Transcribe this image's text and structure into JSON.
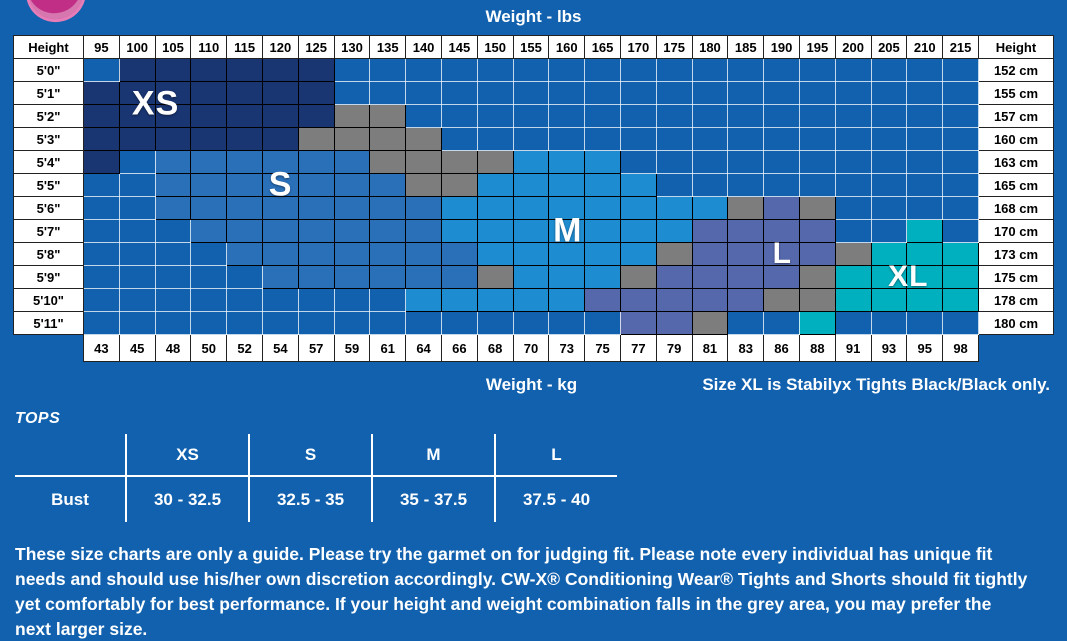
{
  "page": {
    "bg_color": "#1161ae",
    "weight_lbs_label": "Weight - lbs",
    "weight_kg_label": "Weight - kg",
    "xl_note": "Size XL is Stabilyx Tights Black/Black only."
  },
  "chart_data": {
    "type": "heatmap",
    "title": "Weight - lbs",
    "xlabel_top": "Weight - lbs",
    "xlabel_bottom": "Weight - kg",
    "height_header": "Height",
    "x_categories_lbs": [
      "95",
      "100",
      "105",
      "110",
      "115",
      "120",
      "125",
      "130",
      "135",
      "140",
      "145",
      "150",
      "155",
      "160",
      "165",
      "170",
      "175",
      "180",
      "185",
      "190",
      "195",
      "200",
      "205",
      "210",
      "215"
    ],
    "x_categories_kg": [
      "43",
      "45",
      "48",
      "50",
      "52",
      "54",
      "57",
      "59",
      "61",
      "64",
      "66",
      "68",
      "70",
      "73",
      "75",
      "77",
      "79",
      "81",
      "83",
      "86",
      "88",
      "91",
      "93",
      "95",
      "98"
    ],
    "y_categories_ft": [
      "5'0\"",
      "5'1\"",
      "5'2\"",
      "5'3\"",
      "5'4\"",
      "5'5\"",
      "5'6\"",
      "5'7\"",
      "5'8\"",
      "5'9\"",
      "5'10\"",
      "5'11\""
    ],
    "y_categories_cm": [
      "152 cm",
      "155 cm",
      "157 cm",
      "160 cm",
      "163 cm",
      "165 cm",
      "168 cm",
      "170 cm",
      "173 cm",
      "175 cm",
      "178 cm",
      "180 cm"
    ],
    "sizes": [
      {
        "label": "XS"
      },
      {
        "label": "S"
      },
      {
        "label": "M"
      },
      {
        "label": "L"
      },
      {
        "label": "XL"
      }
    ],
    "colors": {
      "xs": "#193572",
      "s": "#2a70b9",
      "m": "#1e8cd0",
      "l": "#5568ac",
      "xl": "#00b0bf",
      "g": "#7d7d7d",
      "empty": "#1161ae"
    },
    "legend_note": "grey cells = overlap zone, prefer next larger size",
    "grid": [
      [
        "",
        "xs",
        "xs",
        "xs",
        "xs",
        "xs",
        "xs",
        "",
        "",
        "",
        "",
        "",
        "",
        "",
        "",
        "",
        "",
        "",
        "",
        "",
        "",
        "",
        "",
        "",
        ""
      ],
      [
        "xs",
        "xs",
        "xs",
        "xs",
        "xs",
        "xs",
        "xs",
        "",
        "",
        "",
        "",
        "",
        "",
        "",
        "",
        "",
        "",
        "",
        "",
        "",
        "",
        "",
        "",
        "",
        ""
      ],
      [
        "xs",
        "xs",
        "xs",
        "xs",
        "xs",
        "xs",
        "xs",
        "g",
        "g",
        "",
        "",
        "",
        "",
        "",
        "",
        "",
        "",
        "",
        "",
        "",
        "",
        "",
        "",
        "",
        ""
      ],
      [
        "xs",
        "xs",
        "xs",
        "xs",
        "xs",
        "xs",
        "g",
        "g",
        "g",
        "g",
        "",
        "",
        "",
        "",
        "",
        "",
        "",
        "",
        "",
        "",
        "",
        "",
        "",
        "",
        ""
      ],
      [
        "xs",
        "",
        "s",
        "s",
        "s",
        "s",
        "s",
        "s",
        "g",
        "g",
        "g",
        "g",
        "m",
        "m",
        "m",
        "",
        "",
        "",
        "",
        "",
        "",
        "",
        "",
        "",
        ""
      ],
      [
        "",
        "",
        "s",
        "s",
        "s",
        "s",
        "s",
        "s",
        "s",
        "g",
        "g",
        "m",
        "m",
        "m",
        "m",
        "m",
        "",
        "",
        "",
        "",
        "",
        "",
        "",
        "",
        ""
      ],
      [
        "",
        "",
        "s",
        "s",
        "s",
        "s",
        "s",
        "s",
        "s",
        "s",
        "m",
        "m",
        "m",
        "m",
        "m",
        "m",
        "m",
        "m",
        "g",
        "l",
        "g",
        "",
        "",
        "",
        ""
      ],
      [
        "",
        "",
        "",
        "s",
        "s",
        "s",
        "s",
        "s",
        "s",
        "s",
        "m",
        "m",
        "m",
        "m",
        "m",
        "m",
        "m",
        "l",
        "l",
        "l",
        "l",
        "",
        "",
        "xl",
        ""
      ],
      [
        "",
        "",
        "",
        "",
        "s",
        "s",
        "s",
        "s",
        "s",
        "s",
        "s",
        "m",
        "m",
        "m",
        "m",
        "m",
        "g",
        "l",
        "l",
        "l",
        "l",
        "g",
        "xl",
        "xl",
        "xl"
      ],
      [
        "",
        "",
        "",
        "",
        "",
        "s",
        "s",
        "s",
        "s",
        "s",
        "s",
        "g",
        "m",
        "m",
        "m",
        "g",
        "l",
        "l",
        "l",
        "l",
        "g",
        "xl",
        "xl",
        "xl",
        "xl"
      ],
      [
        "",
        "",
        "",
        "",
        "",
        "",
        "",
        "",
        "",
        "m",
        "m",
        "m",
        "m",
        "m",
        "l",
        "l",
        "l",
        "l",
        "l",
        "g",
        "g",
        "xl",
        "xl",
        "xl",
        "xl"
      ],
      [
        "",
        "",
        "",
        "",
        "",
        "",
        "",
        "",
        "",
        "",
        "",
        "",
        "",
        "",
        "",
        "l",
        "l",
        "g",
        "",
        "",
        "xl",
        "",
        "",
        "",
        ""
      ]
    ]
  },
  "tops": {
    "heading": "TOPS",
    "col_headers": [
      "XS",
      "S",
      "M",
      "L"
    ],
    "row_label": "Bust",
    "values": [
      "30 - 32.5",
      "32.5 - 35",
      "35 - 37.5",
      "37.5 - 40"
    ]
  },
  "disclaimer": {
    "lines": [
      "These size charts are only a guide. Please try the garmet on for judging fit. Please note every individual has unique fit",
      "needs and should use his/her own discretion accordingly. CW-X® Conditioning Wear® Tights and Shorts should fit tightly",
      "yet comfortably for best performance. If your height and weight combination falls in the grey area, you may prefer the",
      "next larger size."
    ]
  }
}
